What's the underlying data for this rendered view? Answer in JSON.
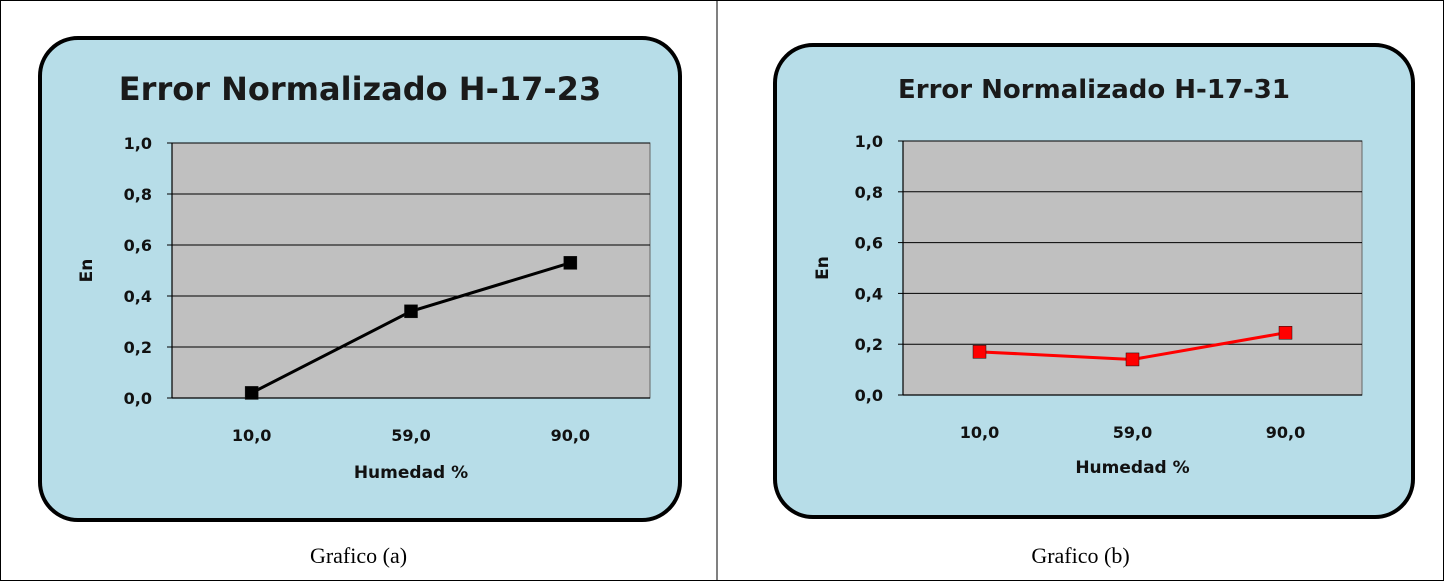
{
  "captions": {
    "a": "Grafico (a)",
    "b": "Grafico (b)"
  },
  "colors": {
    "panel_bg": "#b7dde8",
    "plot_bg": "#c0c0c0",
    "series_a": "#000000",
    "series_b": "#ff0000"
  },
  "chart_data": [
    {
      "type": "line",
      "title": "Error  Normalizado H-17-23",
      "xlabel": "Humedad %",
      "ylabel": "En",
      "categories": [
        "10,0",
        "59,0",
        "90,0"
      ],
      "ylim": [
        0,
        1
      ],
      "yticks": [
        "0,0",
        "0,2",
        "0,4",
        "0,6",
        "0,8",
        "1,0"
      ],
      "grid": true,
      "series": [
        {
          "values": [
            0.02,
            0.34,
            0.53
          ],
          "color": "#000000"
        }
      ]
    },
    {
      "type": "line",
      "title": "Error Normalizado H-17-31",
      "xlabel": "Humedad %",
      "ylabel": "En",
      "categories": [
        "10,0",
        "59,0",
        "90,0"
      ],
      "ylim": [
        0,
        1
      ],
      "yticks": [
        "0,0",
        "0,2",
        "0,4",
        "0,6",
        "0,8",
        "1,0"
      ],
      "grid": true,
      "series": [
        {
          "values": [
            0.17,
            0.14,
            0.245
          ],
          "color": "#ff0000"
        }
      ]
    }
  ]
}
